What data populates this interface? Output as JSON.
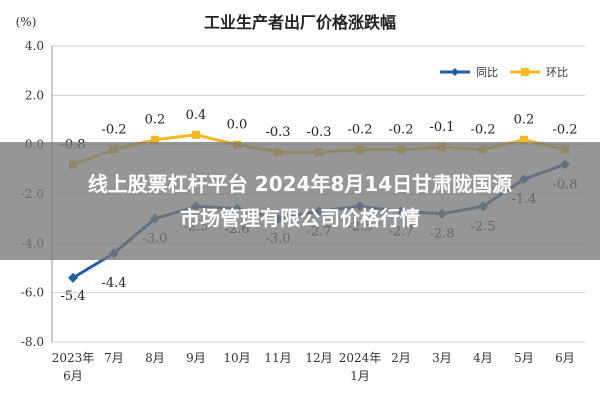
{
  "chart_data": {
    "type": "line",
    "title": "工业生产者出厂价格涨跌幅",
    "unit_label": "(%)",
    "categories": [
      [
        "2023年",
        "6月"
      ],
      [
        "7月"
      ],
      [
        "8月"
      ],
      [
        "9月"
      ],
      [
        "10月"
      ],
      [
        "11月"
      ],
      [
        "12月"
      ],
      [
        "2024年",
        "1月"
      ],
      [
        "2月"
      ],
      [
        "3月"
      ],
      [
        "4月"
      ],
      [
        "5月"
      ],
      [
        "6月"
      ]
    ],
    "ylim": [
      -8.0,
      4.0
    ],
    "yticks": [
      "4.0",
      "2.0",
      "0.0",
      "-2.0",
      "-4.0",
      "-6.0",
      "-8.0"
    ],
    "ytick_values": [
      4,
      2,
      0,
      -2,
      -4,
      -6,
      -8
    ],
    "grid": true,
    "legend_position": "top-right",
    "series": [
      {
        "name": "同比",
        "color": "#1f5fa8",
        "values": [
          -5.4,
          -4.4,
          -3.0,
          -2.5,
          -2.6,
          -3.0,
          -2.7,
          -2.5,
          -2.7,
          -2.8,
          -2.5,
          -1.4,
          -0.8
        ],
        "labels": [
          "-5.4",
          "-4.4",
          "-3.0",
          "-2.5",
          "-2.6",
          "-3.0",
          "-2.7",
          "-2.5",
          "-2.7",
          "-2.8",
          "-2.5",
          "-1.4",
          "-0.8"
        ]
      },
      {
        "name": "环比",
        "color": "#f2b824",
        "values": [
          -0.8,
          -0.2,
          0.2,
          0.4,
          0.0,
          -0.3,
          -0.3,
          -0.2,
          -0.2,
          -0.1,
          -0.2,
          0.2,
          -0.2
        ],
        "labels": [
          "-0.8",
          "-0.2",
          "0.2",
          "0.4",
          "0.0",
          "-0.3",
          "-0.3",
          "-0.2",
          "-0.2",
          "-0.1",
          "-0.2",
          "0.2",
          "-0.2"
        ]
      }
    ]
  },
  "overlay": {
    "line1": "线上股票杠杆平台 2024年8月14日甘肃陇国源",
    "line2": "市场管理有限公司价格行情"
  }
}
